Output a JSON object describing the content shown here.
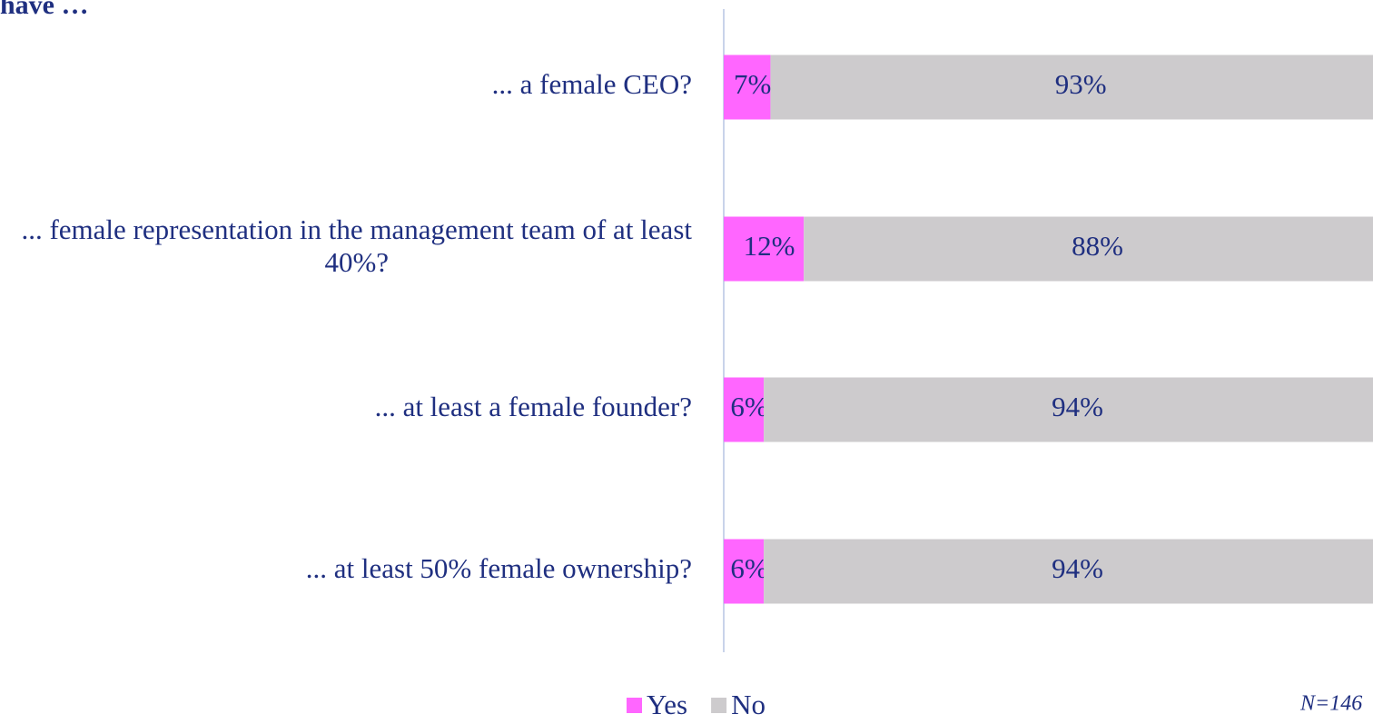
{
  "chart_data": {
    "type": "stacked-bar-horizontal",
    "title": "have …",
    "categories": [
      "... a female CEO?",
      "... female representation in the management team of at least 40%?",
      "... at least a female founder?",
      "... at least 50% female ownership?"
    ],
    "series": [
      {
        "name": "Yes",
        "color": "#ff66ff",
        "values": [
          7,
          12,
          6,
          6
        ],
        "value_labels": [
          "7%",
          "12%",
          "6%",
          "6%"
        ]
      },
      {
        "name": "No",
        "color": "#cdcbcd",
        "values": [
          93,
          88,
          94,
          94
        ],
        "value_labels": [
          "93%",
          "88%",
          "94%",
          "94%"
        ]
      }
    ],
    "xlim": [
      0,
      100
    ],
    "footnote": "N=146"
  }
}
